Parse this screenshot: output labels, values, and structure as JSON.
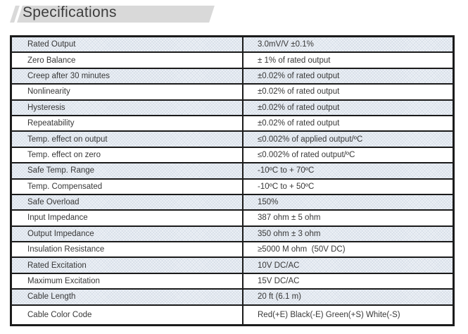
{
  "header": {
    "title": "Specifications"
  },
  "table": {
    "rows": [
      {
        "label": "Rated Output",
        "value": "3.0mV/V ±0.1%",
        "shaded": true
      },
      {
        "label": "Zero Balance",
        "value": "± 1% of rated output",
        "shaded": false
      },
      {
        "label": "Creep after 30 minutes",
        "value": "±0.02% of rated output",
        "shaded": true
      },
      {
        "label": "Nonlinearity",
        "value": "±0.02% of rated output",
        "shaded": false
      },
      {
        "label": "Hysteresis",
        "value": "±0.02% of rated output",
        "shaded": true
      },
      {
        "label": "Repeatability",
        "value": "±0.02% of rated output",
        "shaded": false
      },
      {
        "label": "Temp. effect on output",
        "value": "≤0.002% of applied output/ºC",
        "shaded": true
      },
      {
        "label": "Temp. effect on zero",
        "value": "≤0.002% of rated output/ºC",
        "shaded": false
      },
      {
        "label": "Safe Temp. Range",
        "value": "-10ºC to + 70ºC",
        "shaded": true
      },
      {
        "label": "Temp. Compensated",
        "value": "-10ºC to + 50ºC",
        "shaded": false
      },
      {
        "label": "Safe Overload",
        "value": "150%",
        "shaded": true
      },
      {
        "label": "Input Impedance",
        "value": "387 ohm ± 5 ohm",
        "shaded": false
      },
      {
        "label": "Output Impedance",
        "value": "350 ohm ± 3 ohm",
        "shaded": true
      },
      {
        "label": "Insulation Resistance",
        "value": "≥5000 M ohm  (50V DC)",
        "shaded": false
      },
      {
        "label": "Rated Excitation",
        "value": "10V DC/AC",
        "shaded": true
      },
      {
        "label": "Maximum Excitation",
        "value": "15V DC/AC",
        "shaded": false
      },
      {
        "label": "Cable Length",
        "value": "20 ft (6.1 m)",
        "shaded": true
      },
      {
        "label": "Cable Color Code",
        "value": "Red(+E) Black(-E) Green(+S) White(-S)",
        "shaded": false
      }
    ]
  },
  "colors": {
    "header_band": "#d9d9d9",
    "row_shade": "#edf1f6",
    "table_border": "#1b1b1b",
    "text": "#383838"
  }
}
